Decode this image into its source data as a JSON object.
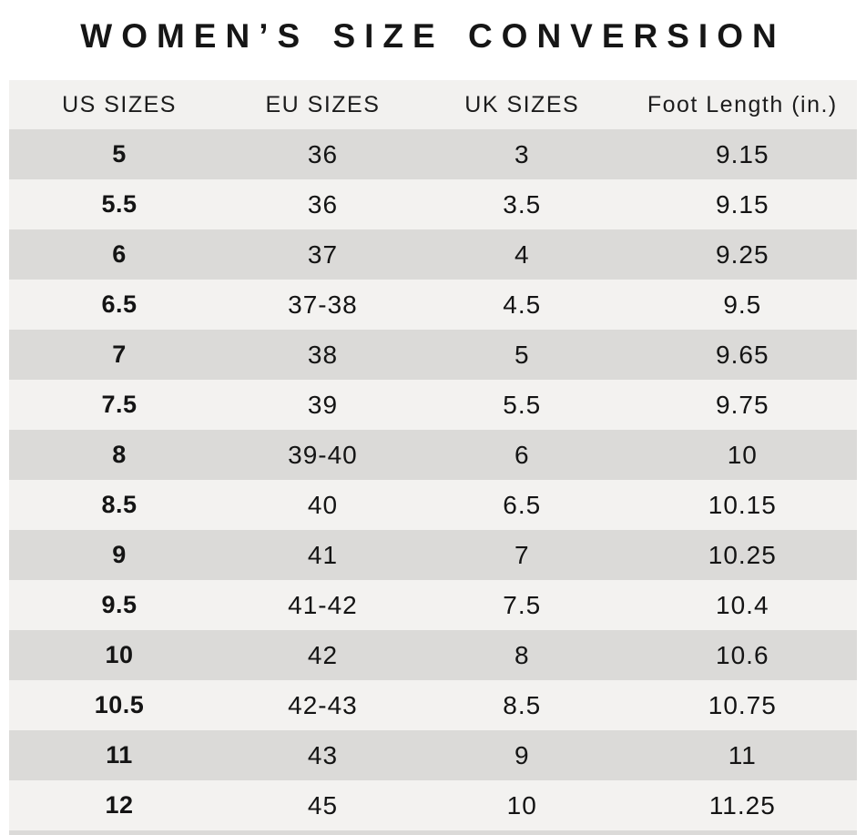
{
  "chart_data": {
    "type": "table",
    "title": "WOMEN’S SIZE CONVERSION",
    "columns": [
      "US SIZES",
      "EU SIZES",
      "UK SIZES",
      "Foot Length (in.)"
    ],
    "rows": [
      [
        "5",
        "36",
        "3",
        "9.15"
      ],
      [
        "5.5",
        "36",
        "3.5",
        "9.15"
      ],
      [
        "6",
        "37",
        "4",
        "9.25"
      ],
      [
        "6.5",
        "37-38",
        "4.5",
        "9.5"
      ],
      [
        "7",
        "38",
        "5",
        "9.65"
      ],
      [
        "7.5",
        "39",
        "5.5",
        "9.75"
      ],
      [
        "8",
        "39-40",
        "6",
        "10"
      ],
      [
        "8.5",
        "40",
        "6.5",
        "10.15"
      ],
      [
        "9",
        "41",
        "7",
        "10.25"
      ],
      [
        "9.5",
        "41-42",
        "7.5",
        "10.4"
      ],
      [
        "10",
        "42",
        "8",
        "10.6"
      ],
      [
        "10.5",
        "42-43",
        "8.5",
        "10.75"
      ],
      [
        "11",
        "43",
        "9",
        "11"
      ],
      [
        "12",
        "45",
        "10",
        "11.25"
      ]
    ],
    "layout": {
      "header_position": "top",
      "row_striping": "first-data-row-dark",
      "alignment": "center"
    }
  },
  "colors": {
    "background": "#ffffff",
    "header_bg": "#f2f1ef",
    "row_dark": "#dbdad8",
    "row_light": "#f3f2f0",
    "text": "#1a1a1a"
  }
}
